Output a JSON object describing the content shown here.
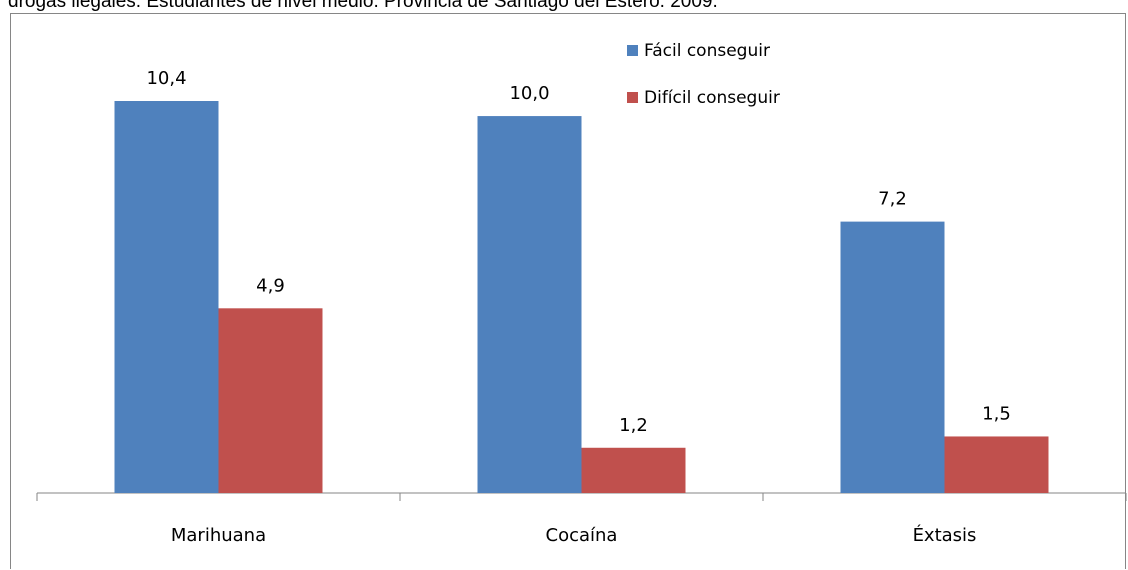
{
  "header": {
    "title_fragment": "drogas ilegales. Estudiantes de nivel medio. Provincia de Santiago del Estero. 2009."
  },
  "chart_data": {
    "type": "bar",
    "title": "drogas ilegales. Estudiantes de nivel medio. Provincia de Santiago del Estero. 2009.",
    "categories": [
      "Marihuana",
      "Cocaína",
      "Éxtasis"
    ],
    "series": [
      {
        "name": "Fácil conseguir",
        "values": [
          10.4,
          10.0,
          7.2
        ],
        "labels": [
          "10,4",
          "10,0",
          "7,2"
        ],
        "color": "#4F81BD"
      },
      {
        "name": "Difícil conseguir",
        "values": [
          4.9,
          1.2,
          1.5
        ],
        "labels": [
          "4,9",
          "1,2",
          "1,5"
        ],
        "color": "#C0504D"
      }
    ],
    "ylim": [
      0,
      10.4
    ],
    "grid": false,
    "legend_position": "top-right"
  }
}
